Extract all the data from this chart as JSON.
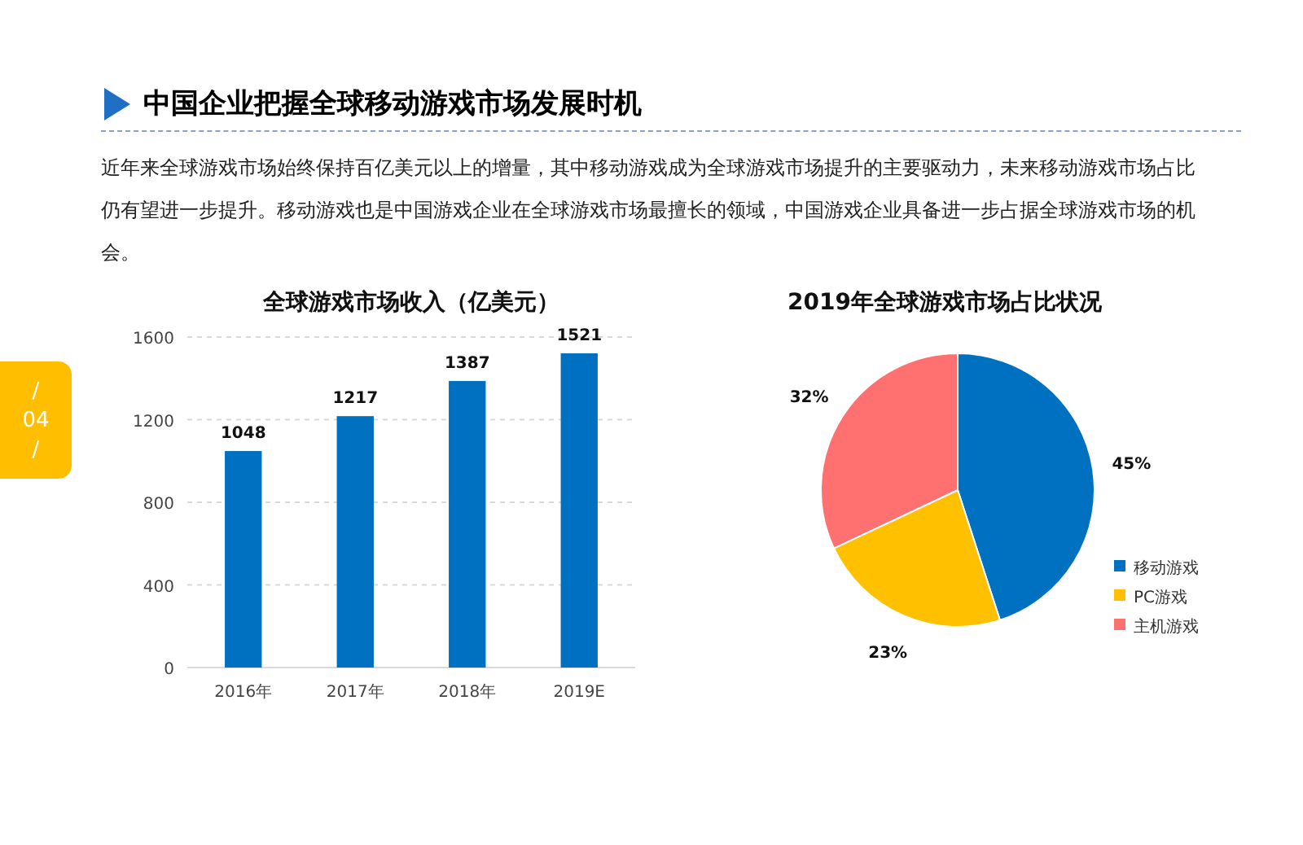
{
  "chart_data": [
    {
      "type": "other",
      "title": "中国企业把握全球移动游戏市场发展时机",
      "annotations": [
        "近年来全球游戏市场始终保持百亿美元以上的增量，其中移动游戏成为全球游戏市场提升的主要驱动力，未来移动游戏市场占比仍有望进一步提升。移动游戏也是中国游戏企业在全球游戏市场最擅长的领域，中国游戏企业具备进一步占据全球游戏市场的机会。",
        "/",
        "04",
        "/"
      ]
    },
    {
      "type": "bar",
      "title": "全球游戏市场收入（亿美元）",
      "categories": [
        "2016年",
        "2017年",
        "2018年",
        "2019E"
      ],
      "values": [
        1048,
        1217,
        1387,
        1521
      ],
      "color": "#0070c0",
      "ylim": [
        0,
        1600
      ],
      "yticks": [
        0,
        400,
        800,
        1200,
        1600
      ],
      "grid": "y",
      "data_labels": true
    },
    {
      "type": "pie",
      "title": "2019年全球游戏市场占比状况",
      "categories": [
        "移动游戏",
        "PC游戏",
        "主机游戏"
      ],
      "values": [
        45,
        23,
        32
      ],
      "colors": [
        "#0070c0",
        "#ffc000",
        "#ff7070"
      ],
      "legend": "bottom right",
      "value_labels": [
        "45%",
        "23%",
        "32%"
      ]
    }
  ]
}
